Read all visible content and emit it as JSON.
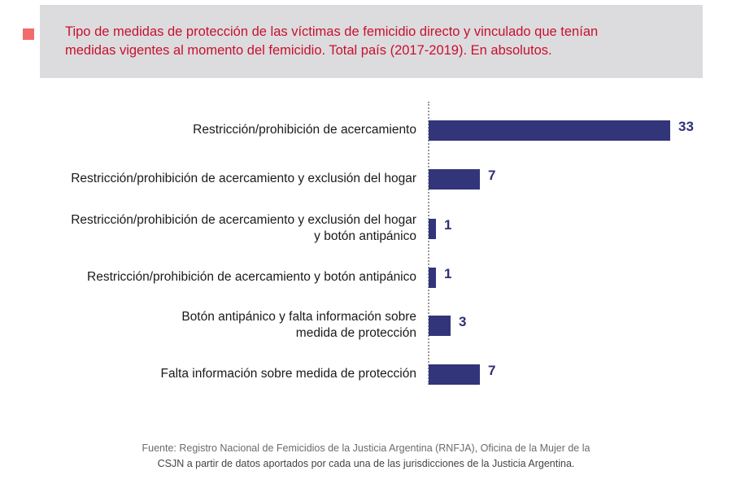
{
  "header": {
    "title_line1": "Tipo de medidas de protección de las víctimas de femicidio directo y vinculado que tenían",
    "title_line2": "medidas vigentes al momento del femicidio. Total país (2017-2019). En absolutos.",
    "title_color": "#c8102e",
    "marker_color": "#f26b6b"
  },
  "chart_data": {
    "type": "bar",
    "orientation": "horizontal",
    "title": "Tipo de medidas de protección de las víctimas de femicidio directo y vinculado que tenían medidas vigentes al momento del femicidio. Total país (2017-2019). En absolutos.",
    "categories": [
      [
        "Restricción/prohibición de acercamiento"
      ],
      [
        "Restricción/prohibición de acercamiento y exclusión del hogar"
      ],
      [
        "Restricción/prohibición de acercamiento y exclusión del hogar",
        "y botón antipánico"
      ],
      [
        "Restricción/prohibición de acercamiento y botón antipánico"
      ],
      [
        "Botón antipánico y falta información sobre",
        "medida de protección"
      ],
      [
        "Falta información sobre medida de protección"
      ]
    ],
    "values": [
      33,
      7,
      1,
      1,
      3,
      7
    ],
    "value_labels": [
      "33",
      "7",
      "1",
      "1",
      "3",
      "7"
    ],
    "xlim": [
      0,
      33
    ],
    "bar_color": "#32357a",
    "label_color": "#2e3078",
    "grid": false,
    "legend": "none",
    "xlabel": "",
    "ylabel": ""
  },
  "footer": {
    "line1": "Fuente: Registro Nacional de Femicidios de la Justicia Argentina (RNFJA), Oficina de la Mujer de la",
    "line2": "CSJN a partir de datos aportados por cada una de las jurisdicciones de la Justicia Argentina."
  }
}
